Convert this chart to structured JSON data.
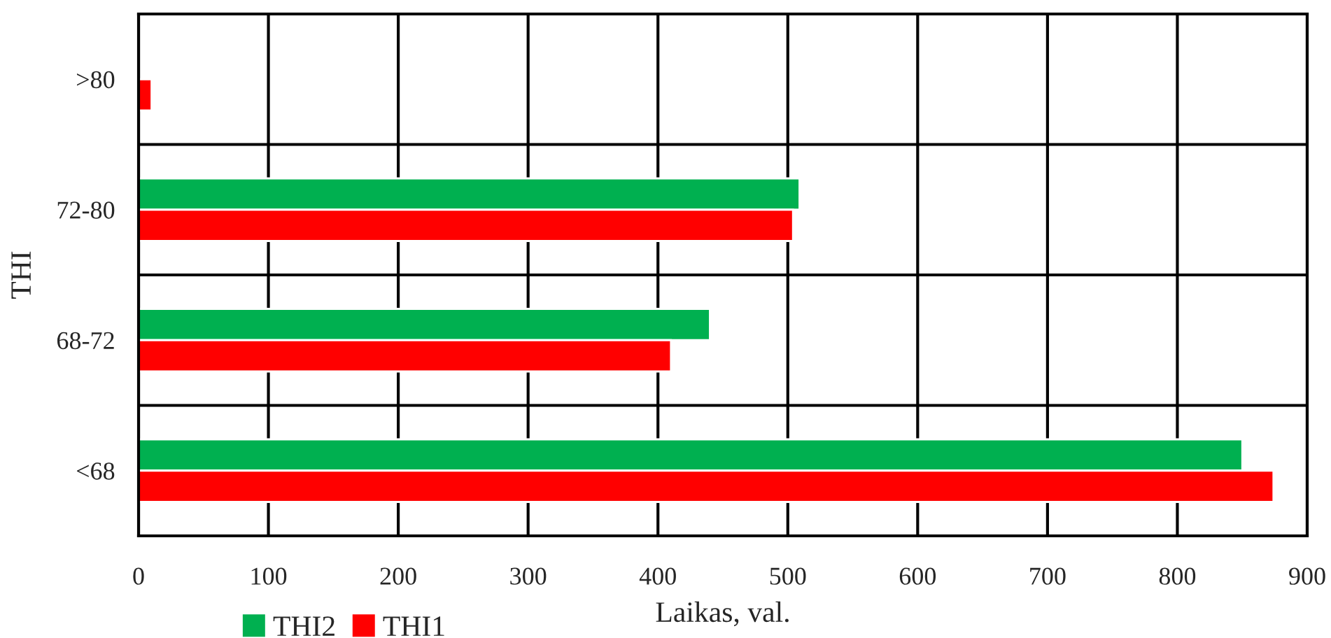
{
  "chart_data": {
    "type": "bar",
    "orientation": "horizontal",
    "xlabel": "Laikas, val.",
    "ylabel": "THI",
    "categories": [
      ">80",
      "72-80",
      "68-72",
      "<68"
    ],
    "series": [
      {
        "name": "THI2",
        "color": "#00b050",
        "values": [
          null,
          509,
          440,
          850
        ]
      },
      {
        "name": "THI1",
        "color": "#ff0000",
        "values": [
          10,
          504,
          410,
          874
        ]
      }
    ],
    "xlim": [
      0,
      900
    ],
    "xticks": [
      0,
      100,
      200,
      300,
      400,
      500,
      600,
      700,
      800,
      900
    ],
    "grid": true,
    "legend": "bottom left"
  }
}
